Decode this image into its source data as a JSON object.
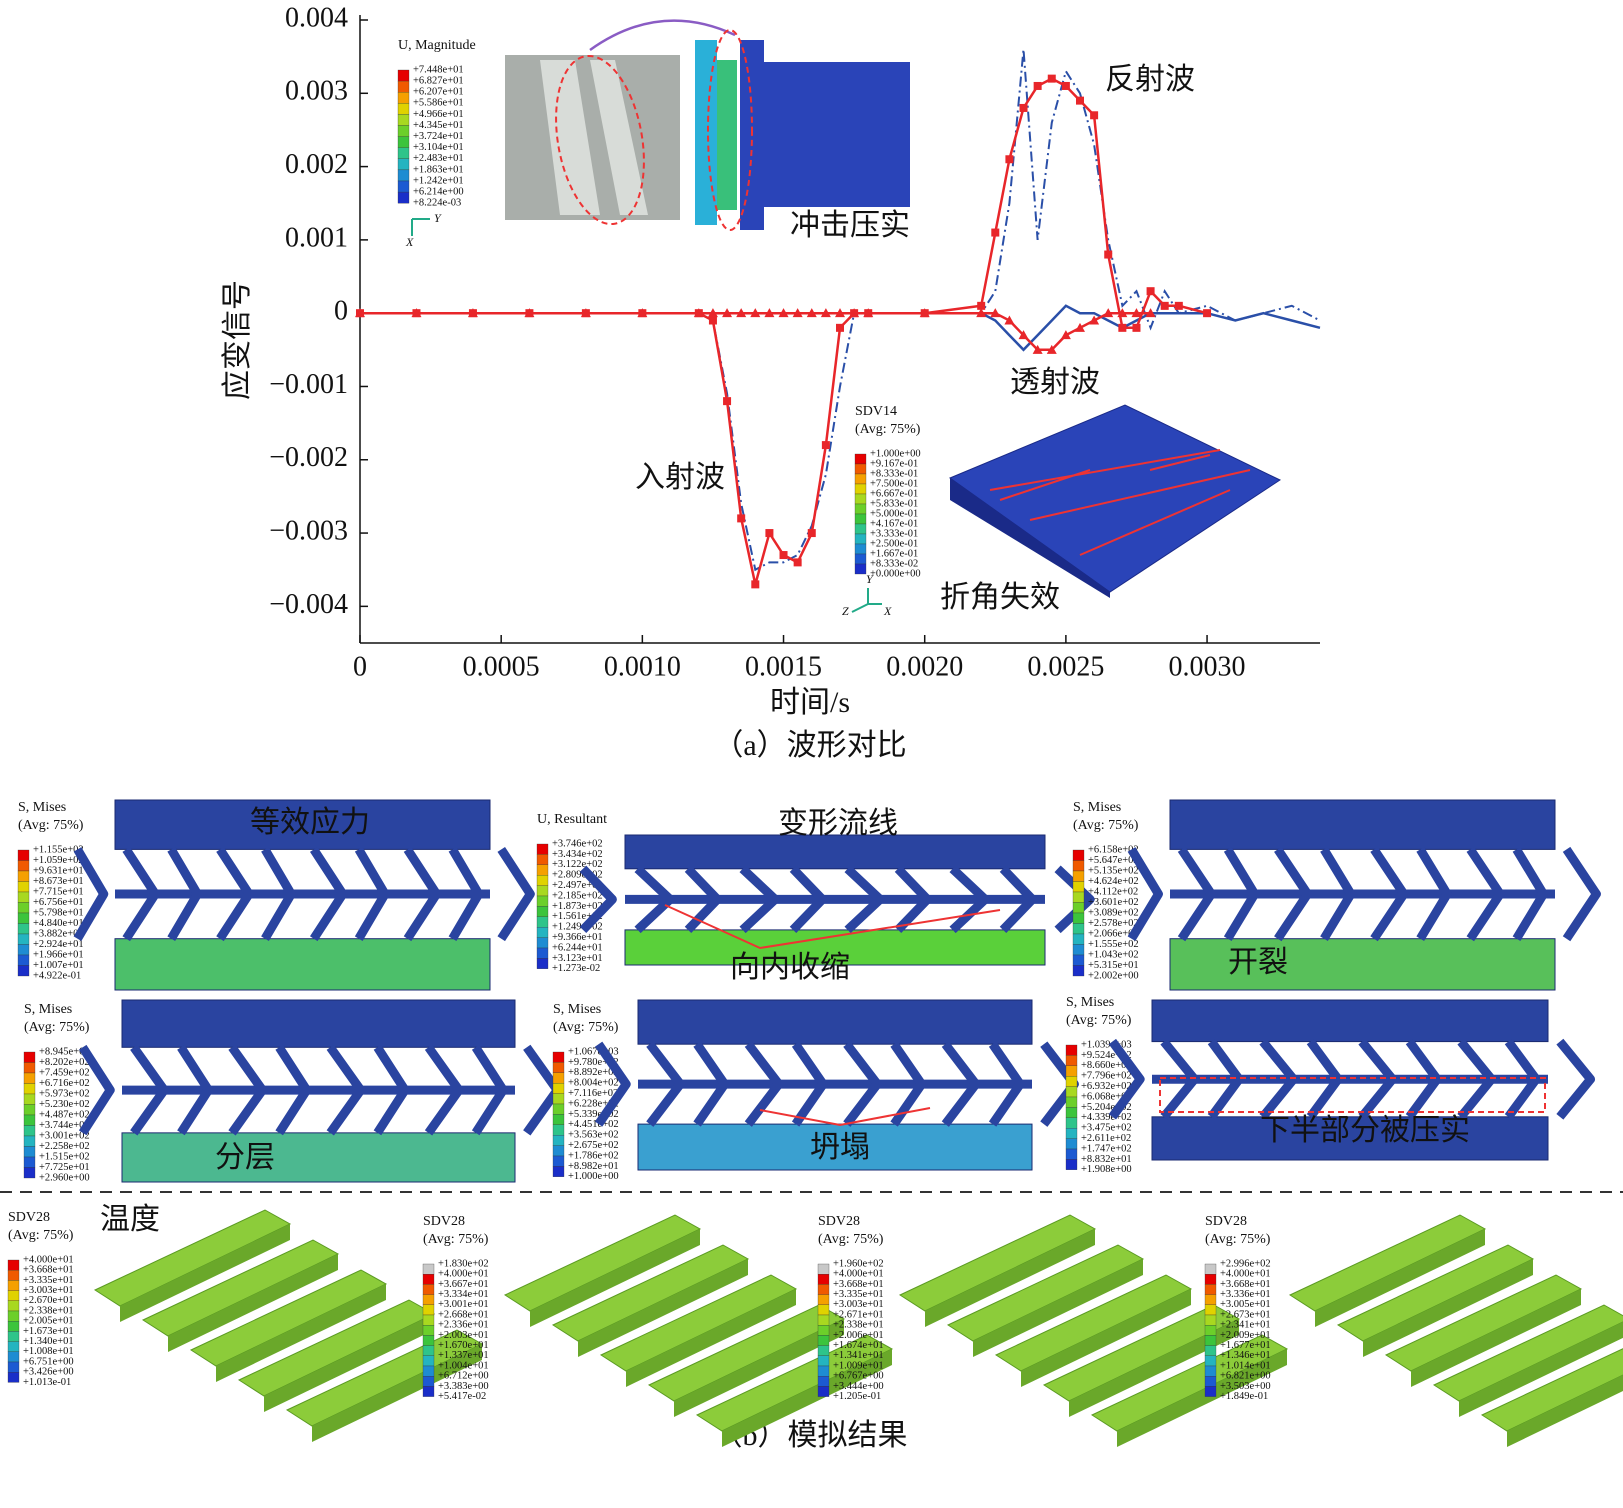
{
  "chart_data": {
    "type": "line",
    "x_label": "时间/s",
    "y_label": "应变信号",
    "caption": "（a）波形对比",
    "xlim": [
      0,
      0.0034
    ],
    "ylim": [
      -0.0045,
      0.004
    ],
    "xticks": [
      0,
      0.0005,
      {
        "value": 0.001,
        "label": "0.0010"
      },
      0.0015,
      {
        "value": 0.002,
        "label": "0.0020"
      },
      0.0025,
      {
        "value": 0.003,
        "label": "0.0030"
      }
    ],
    "yticks": [
      0.004,
      0.003,
      0.002,
      0.001,
      0,
      {
        "value": -0.001,
        "label": "−0.001"
      },
      {
        "value": -0.002,
        "label": "−0.002"
      },
      {
        "value": -0.003,
        "label": "−0.003"
      },
      {
        "value": -0.004,
        "label": "−0.004"
      }
    ],
    "grid": false,
    "x": [
      0,
      0.0002,
      0.0004,
      0.0006,
      0.0008,
      0.001,
      0.0012,
      0.00125,
      0.0013,
      0.00135,
      0.0014,
      0.00145,
      0.0015,
      0.00155,
      0.0016,
      0.00165,
      0.0017,
      0.00175,
      0.0018,
      0.002,
      0.0022,
      0.00225,
      0.0023,
      0.00235,
      0.0024,
      0.00245,
      0.0025,
      0.00255,
      0.0026,
      0.00265,
      0.0027,
      0.00275,
      0.0028,
      0.00285,
      0.0029,
      0.003,
      0.0031,
      0.0032,
      0.0033,
      0.0034
    ],
    "series": [
      {
        "color": "#2a4fa8",
        "linestyle": "dashdot",
        "marker": "none",
        "values": [
          null,
          null,
          null,
          null,
          null,
          0,
          0,
          -0.0001,
          -0.0011,
          -0.0026,
          -0.0035,
          -0.0034,
          -0.0034,
          -0.0033,
          -0.0029,
          -0.0022,
          -0.001,
          0,
          0,
          0,
          0,
          0.0003,
          0.0015,
          0.0036,
          0.001,
          0.0026,
          0.0033,
          0.003,
          0.0023,
          0.001,
          0.0001,
          0.0003,
          -0.0002,
          0.0003,
          0,
          0.0001,
          -0.0001,
          0,
          0.0001,
          -0.0001
        ]
      },
      {
        "color": "#2a4fa8",
        "linestyle": "solid",
        "marker": "none",
        "values": [
          null,
          null,
          null,
          null,
          null,
          null,
          null,
          null,
          null,
          null,
          null,
          null,
          null,
          null,
          null,
          null,
          null,
          null,
          null,
          null,
          0,
          -0.0001,
          -0.0003,
          -0.0005,
          -0.0003,
          -0.0001,
          0.0001,
          0,
          0,
          -0.0001,
          -0.0002,
          -0.0001,
          0,
          0,
          0,
          0,
          -0.0001,
          0,
          -0.0001,
          -0.0002
        ]
      },
      {
        "color": "#e8262a",
        "linestyle": "solid",
        "marker": "triangle",
        "values": [
          0,
          0,
          0,
          0,
          0,
          0,
          0,
          0,
          0,
          0,
          0,
          0,
          0,
          0,
          0,
          0,
          0,
          0,
          0,
          0,
          0,
          0,
          -0.0001,
          -0.0003,
          -0.0005,
          -0.0005,
          -0.0003,
          -0.0002,
          -0.0001,
          0,
          0,
          0,
          0,
          null,
          null,
          null,
          null,
          null,
          null,
          null
        ]
      },
      {
        "color": "#e8262a",
        "linestyle": "solid",
        "marker": "square",
        "values": [
          0,
          0,
          0,
          0,
          0,
          0,
          0,
          -0.0001,
          -0.0012,
          -0.0028,
          -0.0037,
          -0.003,
          -0.0033,
          -0.0034,
          -0.003,
          -0.0018,
          -0.0002,
          0,
          0,
          0,
          0.0001,
          0.0011,
          0.0021,
          0.0028,
          0.0031,
          0.0032,
          0.0031,
          0.0029,
          0.0027,
          0.0008,
          -0.0002,
          -0.0002,
          0.0003,
          0.0001,
          0.0001,
          0,
          null,
          null,
          null,
          null
        ]
      }
    ],
    "annotations": [
      "反射波",
      "透射波",
      "入射波",
      "冲击压实",
      "折角失效"
    ]
  },
  "legend_colors": [
    "#e60000",
    "#f05a00",
    "#f5a000",
    "#e0d200",
    "#a8d820",
    "#6ccf2a",
    "#3cc43c",
    "#2ec48a",
    "#24b4c0",
    "#1e8cd2",
    "#1c5ad2",
    "#1a2ec8"
  ],
  "overflow_color": "#c8c8c8",
  "insets": [
    {
      "legend_title": [
        "U, Magnitude"
      ],
      "legend_values": [
        "+7.448e+01",
        "+6.827e+01",
        "+6.207e+01",
        "+5.586e+01",
        "+4.966e+01",
        "+4.345e+01",
        "+3.724e+01",
        "+3.104e+01",
        "+2.483e+01",
        "+1.863e+01",
        "+1.242e+01",
        "+6.214e+00",
        "+8.224e-03"
      ],
      "triad": [
        "Y",
        "X"
      ]
    },
    {
      "legend_title": [
        "SDV14",
        "(Avg: 75%)"
      ],
      "legend_values": [
        "+1.000e+00",
        "+9.167e-01",
        "+8.333e-01",
        "+7.500e-01",
        "+6.667e-01",
        "+5.833e-01",
        "+5.000e-01",
        "+4.167e-01",
        "+3.333e-01",
        "+2.500e-01",
        "+1.667e-01",
        "+8.333e-02",
        "+0.000e+00"
      ],
      "triad": [
        "Y",
        "Z",
        "X"
      ]
    }
  ],
  "panels": [
    {
      "legend_title": [
        "S, Mises",
        "(Avg: 75%)"
      ],
      "legend_values": [
        "+1.155e+02",
        "+1.059e+02",
        "+9.631e+01",
        "+8.673e+01",
        "+7.715e+01",
        "+6.756e+01",
        "+5.798e+01",
        "+4.840e+01",
        "+3.882e+01",
        "+2.924e+01",
        "+1.966e+01",
        "+1.007e+01",
        "+4.922e-01"
      ],
      "labels": [
        "等效应力"
      ]
    },
    {
      "legend_title": [
        "U, Resultant"
      ],
      "legend_values": [
        "+3.746e+02",
        "+3.434e+02",
        "+3.122e+02",
        "+2.809e+02",
        "+2.497e+02",
        "+2.185e+02",
        "+1.873e+02",
        "+1.561e+02",
        "+1.249e+02",
        "+9.366e+01",
        "+6.244e+01",
        "+3.123e+01",
        "+1.273e-02"
      ],
      "labels": [
        "变形流线",
        "向内收缩"
      ]
    },
    {
      "legend_title": [
        "S, Mises",
        "(Avg: 75%)"
      ],
      "legend_values": [
        "+6.158e+02",
        "+5.647e+02",
        "+5.135e+02",
        "+4.624e+02",
        "+4.112e+02",
        "+3.601e+02",
        "+3.089e+02",
        "+2.578e+02",
        "+2.066e+02",
        "+1.555e+02",
        "+1.043e+02",
        "+5.315e+01",
        "+2.002e+00"
      ],
      "labels": [
        "开裂"
      ]
    },
    {
      "legend_title": [
        "S, Mises",
        "(Avg: 75%)"
      ],
      "legend_values": [
        "+8.945e+02",
        "+8.202e+02",
        "+7.459e+02",
        "+6.716e+02",
        "+5.973e+02",
        "+5.230e+02",
        "+4.487e+02",
        "+3.744e+02",
        "+3.001e+02",
        "+2.258e+02",
        "+1.515e+02",
        "+7.725e+01",
        "+2.960e+00"
      ],
      "labels": [
        "分层"
      ]
    },
    {
      "legend_title": [
        "S, Mises",
        "(Avg: 75%)"
      ],
      "legend_values": [
        "+1.067e+03",
        "+9.780e+02",
        "+8.892e+02",
        "+8.004e+02",
        "+7.116e+02",
        "+6.228e+02",
        "+5.339e+02",
        "+4.451e+02",
        "+3.563e+02",
        "+2.675e+02",
        "+1.786e+02",
        "+8.982e+01",
        "+1.000e+00"
      ],
      "labels": [
        "坍塌"
      ]
    },
    {
      "legend_title": [
        "S, Mises",
        "(Avg: 75%)"
      ],
      "legend_values": [
        "+1.039e+03",
        "+9.524e+02",
        "+8.660e+02",
        "+7.796e+02",
        "+6.932e+02",
        "+6.068e+02",
        "+5.204e+02",
        "+4.339e+02",
        "+3.475e+02",
        "+2.611e+02",
        "+1.747e+02",
        "+8.832e+01",
        "+1.908e+00"
      ],
      "labels": [
        "下半部分被压实"
      ]
    }
  ],
  "temperature_panels": [
    {
      "legend_title": [
        "SDV28",
        "(Avg: 75%)"
      ],
      "legend_values": [
        "+4.000e+01",
        "+3.668e+01",
        "+3.335e+01",
        "+3.003e+01",
        "+2.670e+01",
        "+2.338e+01",
        "+2.005e+01",
        "+1.673e+01",
        "+1.340e+01",
        "+1.008e+01",
        "+6.751e+00",
        "+3.426e+00",
        "+1.013e-01"
      ],
      "labels": [
        "温度"
      ]
    },
    {
      "legend_title": [
        "SDV28",
        "(Avg: 75%)"
      ],
      "legend_values": [
        "+1.830e+02",
        "+4.000e+01",
        "+3.667e+01",
        "+3.334e+01",
        "+3.001e+01",
        "+2.668e+01",
        "+2.336e+01",
        "+2.003e+01",
        "+1.670e+01",
        "+1.337e+01",
        "+1.004e+01",
        "+6.712e+00",
        "+3.383e+00",
        "+5.417e-02"
      ],
      "labels": []
    },
    {
      "legend_title": [
        "SDV28",
        "(Avg: 75%)"
      ],
      "legend_values": [
        "+1.960e+02",
        "+4.000e+01",
        "+3.668e+01",
        "+3.335e+01",
        "+3.003e+01",
        "+2.671e+01",
        "+2.338e+01",
        "+2.006e+01",
        "+1.674e+01",
        "+1.341e+01",
        "+1.009e+01",
        "+6.767e+00",
        "+3.444e+00",
        "+1.205e-01"
      ],
      "labels": []
    },
    {
      "legend_title": [
        "SDV28",
        "(Avg: 75%)"
      ],
      "legend_values": [
        "+2.996e+02",
        "+4.000e+01",
        "+3.668e+01",
        "+3.336e+01",
        "+3.005e+01",
        "+2.673e+01",
        "+2.341e+01",
        "+2.009e+01",
        "+1.677e+01",
        "+1.346e+01",
        "+1.014e+01",
        "+6.821e+00",
        "+3.503e+00",
        "+1.849e-01"
      ],
      "labels": []
    }
  ],
  "caption_b": "（b）模拟结果"
}
